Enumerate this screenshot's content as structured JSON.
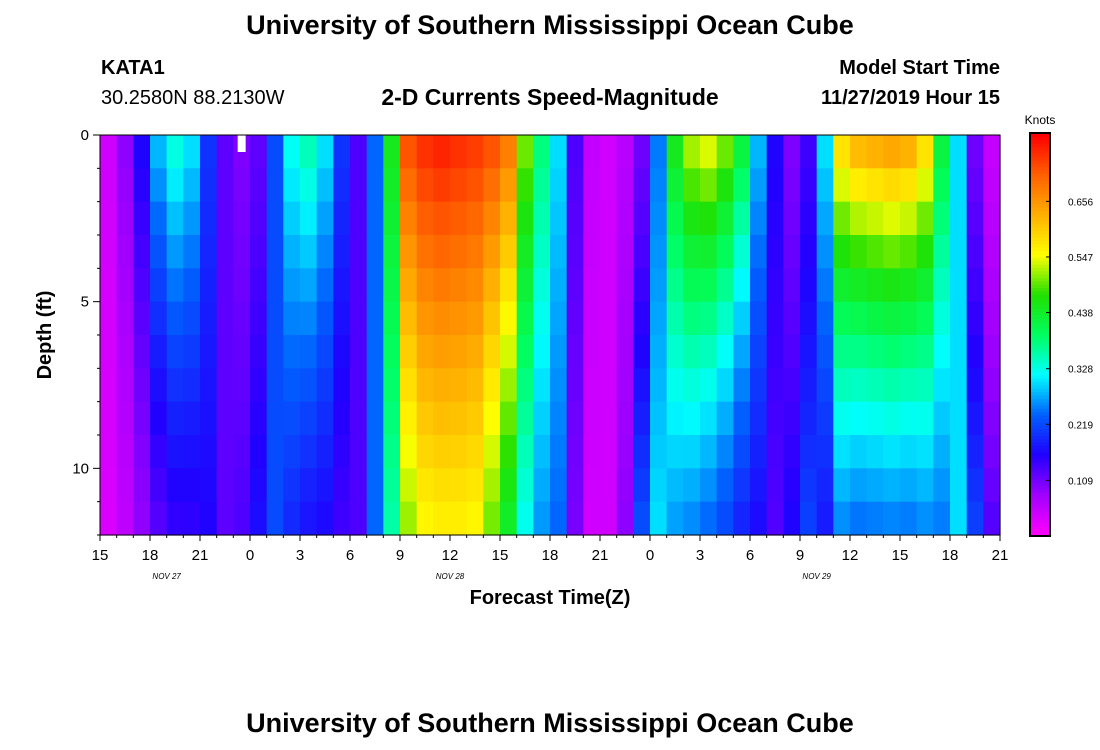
{
  "page": {
    "title_top": "University of Southern Mississippi Ocean Cube",
    "title_bottom": "University of Southern Mississippi Ocean Cube",
    "station_id": "KATA1",
    "station_coords": "30.2580N 88.2130W",
    "product_title": "2-D Currents Speed-Magnitude",
    "model_start_label": "Model Start Time",
    "model_start_value": "11/27/2019 Hour 15"
  },
  "colors": {
    "colormap": [
      "#ff00ff",
      "#a000ff",
      "#2000ff",
      "#0060ff",
      "#00ffff",
      "#00ff60",
      "#20e000",
      "#ffff00",
      "#ffb000",
      "#ff6000",
      "#ff0000"
    ],
    "marker": "#ffffff"
  },
  "chart_data": {
    "type": "heatmap",
    "title": "2-D Currents Speed-Magnitude",
    "xlabel": "Forecast Time(Z)",
    "ylabel": "Depth (ft)",
    "x_ticks": [
      "15",
      "18",
      "21",
      "0",
      "3",
      "6",
      "9",
      "12",
      "15",
      "18",
      "21",
      "0",
      "3",
      "6",
      "9",
      "12",
      "15",
      "18",
      "21"
    ],
    "date_labels": [
      {
        "text": "NOV  27",
        "hour": 4
      },
      {
        "text": "NOV  28",
        "hour": 21
      },
      {
        "text": "NOV  29",
        "hour": 43
      }
    ],
    "x_range_hours": [
      0,
      54
    ],
    "y_ticks": [
      "0",
      "5",
      "10"
    ],
    "y_range_ft": [
      0,
      12
    ],
    "colorbar": {
      "title": "Knots",
      "ticks": [
        "0.109",
        "0.219",
        "0.328",
        "0.438",
        "0.547",
        "0.656"
      ],
      "range": [
        0,
        0.79
      ]
    },
    "columns_hours": [
      0,
      1,
      2,
      3,
      4,
      5,
      6,
      7,
      8,
      9,
      10,
      11,
      12,
      13,
      14,
      15,
      16,
      17,
      18,
      19,
      20,
      21,
      22,
      23,
      24,
      25,
      26,
      27,
      28,
      29,
      30,
      31,
      32,
      33,
      34,
      35,
      36,
      37,
      38,
      39,
      40,
      41,
      42,
      43,
      44,
      45,
      46,
      47,
      48,
      49,
      50,
      51,
      52,
      53
    ],
    "surface_speed_knots": [
      0.04,
      0.09,
      0.16,
      0.28,
      0.33,
      0.3,
      0.2,
      0.12,
      0.1,
      0.12,
      0.22,
      0.32,
      0.35,
      0.3,
      0.2,
      0.13,
      0.24,
      0.45,
      0.72,
      0.75,
      0.76,
      0.75,
      0.74,
      0.72,
      0.68,
      0.5,
      0.38,
      0.3,
      0.13,
      0.05,
      0.04,
      0.06,
      0.11,
      0.25,
      0.45,
      0.52,
      0.54,
      0.5,
      0.42,
      0.28,
      0.16,
      0.1,
      0.14,
      0.3,
      0.58,
      0.62,
      0.63,
      0.64,
      0.63,
      0.58,
      0.42,
      0.3,
      0.11,
      0.05
    ],
    "depth_decay_at_12ft": [
      0.8,
      0.6,
      0.55,
      0.45,
      0.45,
      0.5,
      0.8,
      1.0,
      1.3,
      1.4,
      1.0,
      0.6,
      0.5,
      0.55,
      0.7,
      1.0,
      1.0,
      0.8,
      0.72,
      0.75,
      0.75,
      0.76,
      0.76,
      0.7,
      0.65,
      0.65,
      0.7,
      0.8,
      0.8,
      0.8,
      1.0,
      1.5,
      2.0,
      1.2,
      0.6,
      0.5,
      0.45,
      0.44,
      0.45,
      0.6,
      0.8,
      1.6,
      1.5,
      0.6,
      0.45,
      0.4,
      0.4,
      0.4,
      0.4,
      0.45,
      0.6,
      1.0,
      1.9,
      2.5
    ],
    "min_speed_knots": 0.02,
    "max_speed_knots": 0.78
  }
}
